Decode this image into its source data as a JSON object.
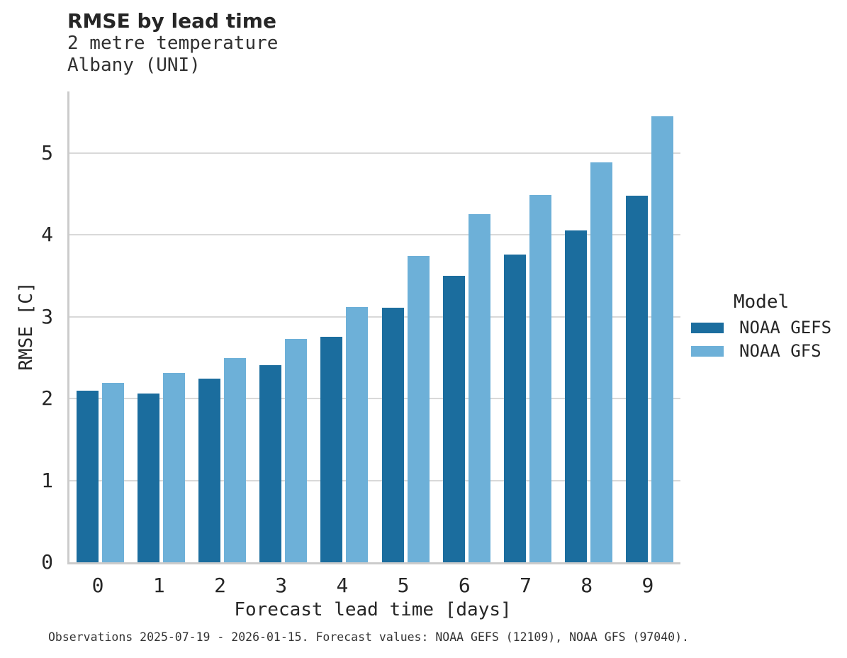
{
  "header": {
    "title": "RMSE by lead time",
    "subtitle_line1": "2 metre temperature",
    "subtitle_line2": "Albany (UNI)"
  },
  "chart_data": {
    "type": "bar",
    "title": "RMSE by lead time",
    "subtitle": [
      "2 metre temperature",
      "Albany (UNI)"
    ],
    "xlabel": "Forecast lead time [days]",
    "ylabel": "RMSE [C]",
    "categories": [
      "0",
      "1",
      "2",
      "3",
      "4",
      "5",
      "6",
      "7",
      "8",
      "9"
    ],
    "series": [
      {
        "name": "NOAA GEFS",
        "color": "#1b6d9e",
        "values": [
          2.1,
          2.06,
          2.24,
          2.41,
          2.75,
          3.11,
          3.5,
          3.76,
          4.05,
          4.48
        ]
      },
      {
        "name": "NOAA GFS",
        "color": "#6db0d8",
        "values": [
          2.19,
          2.31,
          2.49,
          2.73,
          3.12,
          3.74,
          4.25,
          4.49,
          4.88,
          5.45
        ]
      }
    ],
    "ylim": [
      0,
      5.75
    ],
    "yticks": [
      0,
      1,
      2,
      3,
      4,
      5
    ],
    "grid": true,
    "legend_title": "Model",
    "legend_position": "right"
  },
  "legend": {
    "title": "Model"
  },
  "footer": {
    "caption": "Observations 2025-07-19 - 2026-01-15. Forecast values: NOAA GEFS (12109), NOAA GFS (97040)."
  }
}
